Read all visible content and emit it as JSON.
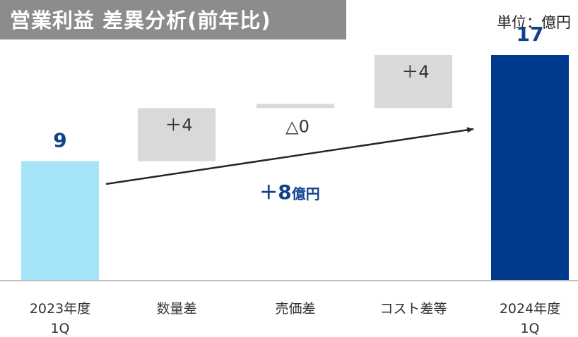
{
  "title": "営業利益 差異分析(前年比)",
  "unit": "単位：億円",
  "colors": {
    "start_bar": "#a6e4fa",
    "end_bar": "#003a8c",
    "step_bar": "#d9d9d9",
    "value_blue": "#12418c",
    "axis": "#bfbfbf",
    "arrow": "#262626"
  },
  "chart_data": {
    "type": "bar",
    "subtype": "waterfall",
    "title": "営業利益 差異分析(前年比)",
    "unit": "単位：億円",
    "categories": [
      {
        "line1": "2023年度",
        "line2": "1Q"
      },
      {
        "line1": "数量差",
        "line2": ""
      },
      {
        "line1": "売価差",
        "line2": ""
      },
      {
        "line1": "コスト差等",
        "line2": ""
      },
      {
        "line1": "2024年度",
        "line2": "1Q"
      }
    ],
    "bars": [
      {
        "kind": "total",
        "value": 9,
        "label": "9"
      },
      {
        "kind": "delta",
        "value": 4,
        "label": "＋4"
      },
      {
        "kind": "delta",
        "value": 0,
        "label": "△0"
      },
      {
        "kind": "delta",
        "value": 4,
        "label": "＋4"
      },
      {
        "kind": "total",
        "value": 17,
        "label": "17"
      }
    ],
    "ylim": [
      0,
      17
    ],
    "annotation": {
      "sign": "＋",
      "number": "8",
      "unit": "億円"
    }
  }
}
